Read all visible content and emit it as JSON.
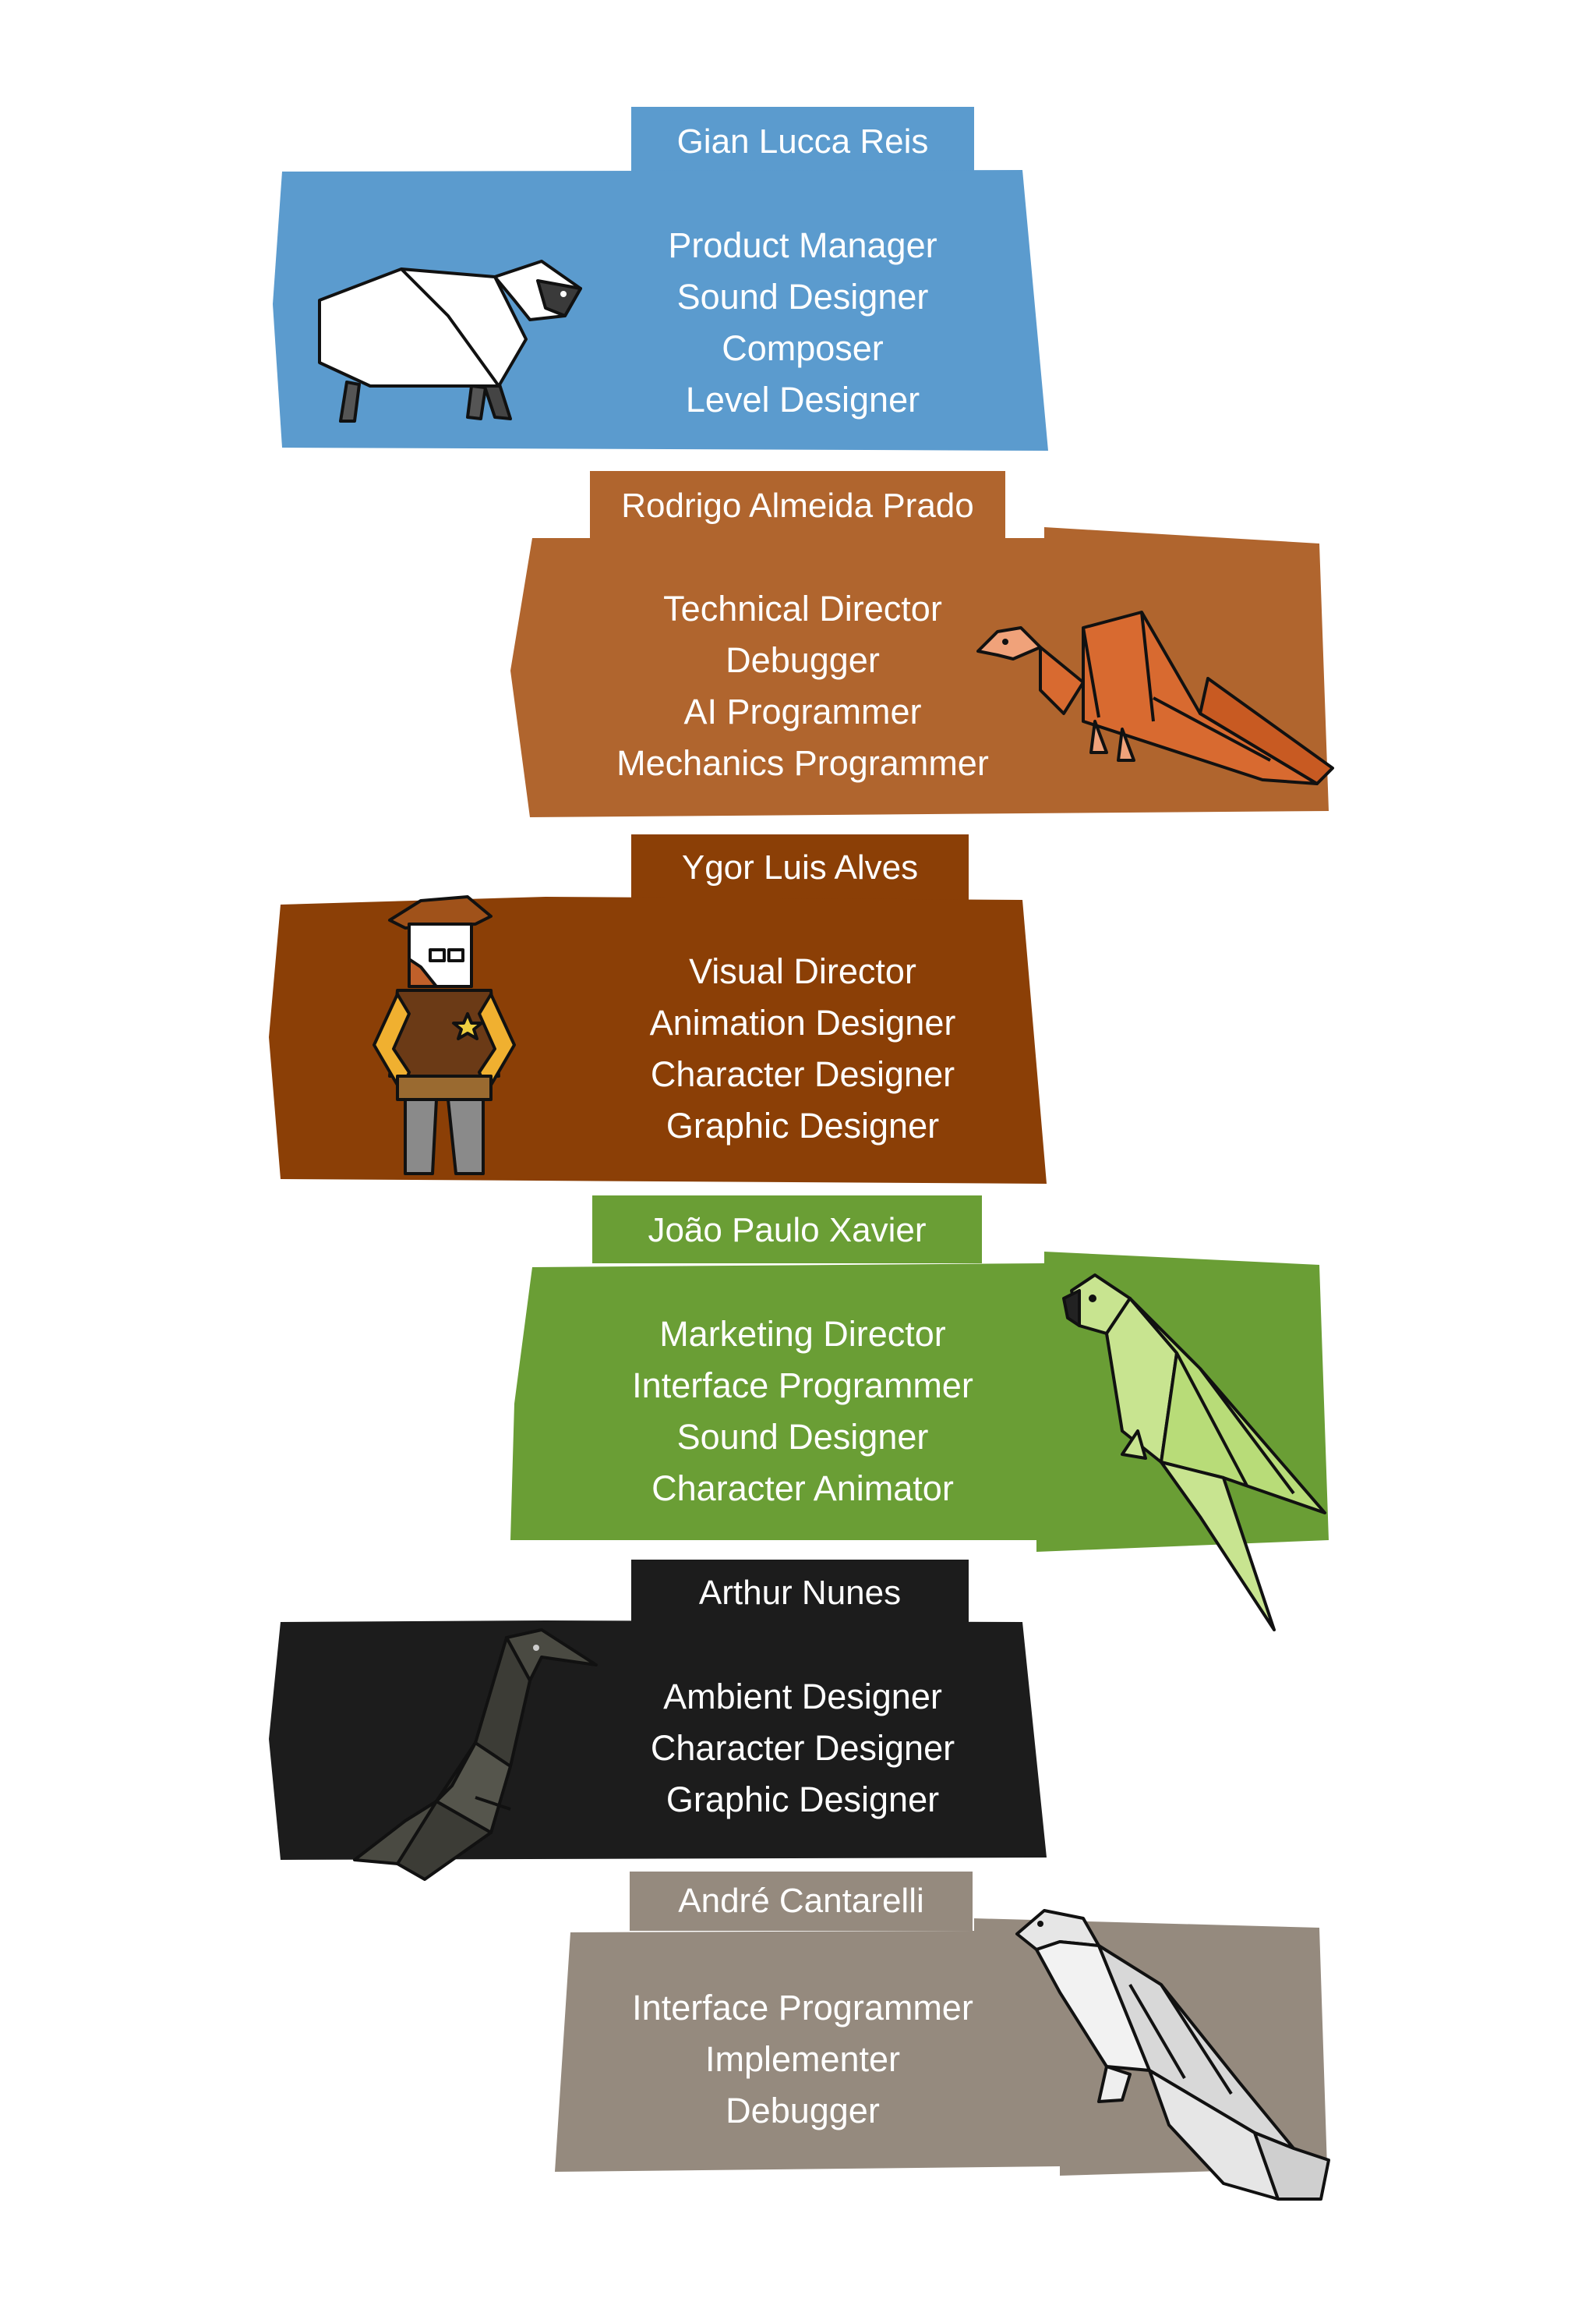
{
  "members": [
    {
      "name": "Gian Lucca Reis",
      "roles": [
        "Product Manager",
        "Sound Designer",
        "Composer",
        "Level Designer"
      ],
      "color": "#5b9bce",
      "mascot": "sheep-icon"
    },
    {
      "name": "Rodrigo Almeida Prado",
      "roles": [
        "Technical Director",
        "Debugger",
        "AI Programmer",
        "Mechanics Programmer"
      ],
      "color": "#b0652e",
      "mascot": "vulture-icon"
    },
    {
      "name": "Ygor Luis Alves",
      "roles": [
        "Visual Director",
        "Animation Designer",
        "Character Designer",
        "Graphic Designer"
      ],
      "color": "#8b3f06",
      "mascot": "sheriff-icon"
    },
    {
      "name": "João Paulo Xavier",
      "roles": [
        "Marketing Director",
        "Interface Programmer",
        "Sound Designer",
        "Character Animator"
      ],
      "color": "#6a9e35",
      "mascot": "parrot-icon"
    },
    {
      "name": "Arthur Nunes",
      "roles": [
        "Ambient Designer",
        "Character Designer",
        "Graphic Designer"
      ],
      "color": "#1c1c1c",
      "mascot": "crow-icon"
    },
    {
      "name": "André Cantarelli",
      "roles": [
        "Interface Programmer",
        "Implementer",
        "Debugger"
      ],
      "color": "#958a7e",
      "mascot": "hawk-icon"
    }
  ]
}
